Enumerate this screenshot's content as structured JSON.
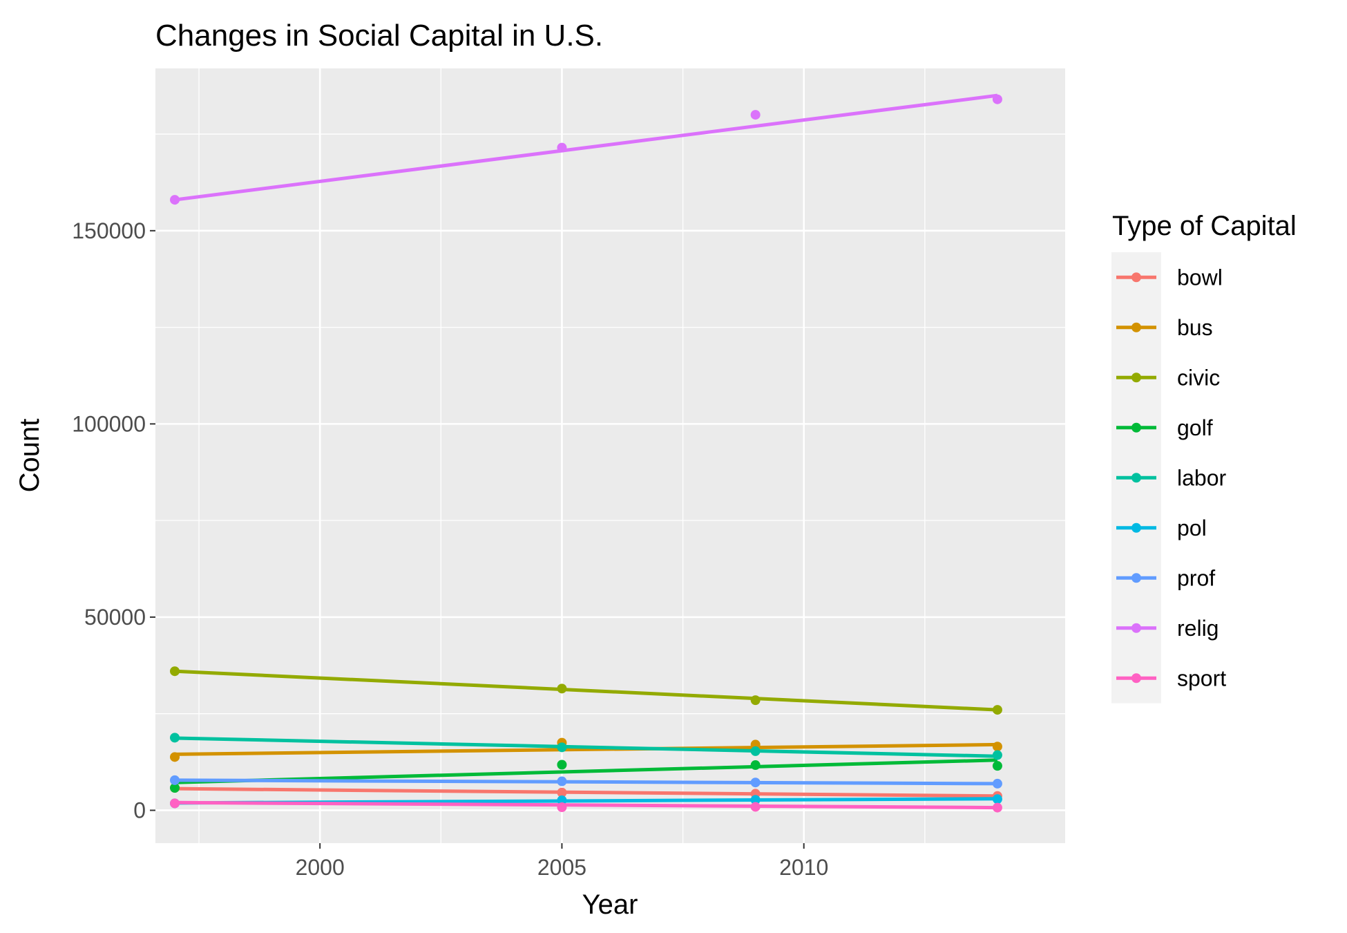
{
  "chart_data": {
    "type": "line",
    "title": "Changes in Social Capital in U.S.",
    "xlabel": "Year",
    "ylabel": "Count",
    "xlim": [
      1996.6,
      2015.4
    ],
    "ylim": [
      -8500,
      192000
    ],
    "x_ticks": [
      2000,
      2005,
      2010
    ],
    "y_ticks": [
      0,
      50000,
      100000,
      150000
    ],
    "x_tick_labels": [
      "2000",
      "2005",
      "2010"
    ],
    "y_tick_labels": [
      "0",
      "50000",
      "100000",
      "150000"
    ],
    "grid": true,
    "legend": {
      "title": "Type of Capital",
      "position": "right"
    },
    "series": [
      {
        "name": "bowl",
        "color": "#F8766D",
        "points": [
          [
            1997,
            5800
          ],
          [
            2005,
            4600
          ],
          [
            2009,
            4300
          ],
          [
            2014,
            3700
          ]
        ],
        "trend": [
          [
            1997,
            5600
          ],
          [
            2014,
            3700
          ]
        ]
      },
      {
        "name": "bus",
        "color": "#D39200",
        "points": [
          [
            1997,
            13800
          ],
          [
            2005,
            17500
          ],
          [
            2009,
            17000
          ],
          [
            2014,
            16500
          ]
        ],
        "trend": [
          [
            1997,
            14500
          ],
          [
            2014,
            17000
          ]
        ]
      },
      {
        "name": "civic",
        "color": "#93AA00",
        "points": [
          [
            1997,
            36000
          ],
          [
            2005,
            31500
          ],
          [
            2009,
            28500
          ],
          [
            2014,
            26000
          ]
        ],
        "trend": [
          [
            1997,
            36000
          ],
          [
            2014,
            26000
          ]
        ]
      },
      {
        "name": "golf",
        "color": "#00BA38",
        "points": [
          [
            1997,
            5800
          ],
          [
            2005,
            11800
          ],
          [
            2009,
            11700
          ],
          [
            2014,
            11500
          ]
        ],
        "trend": [
          [
            1997,
            7200
          ],
          [
            2014,
            13000
          ]
        ]
      },
      {
        "name": "labor",
        "color": "#00C19F",
        "points": [
          [
            1997,
            18800
          ],
          [
            2005,
            16300
          ],
          [
            2009,
            15300
          ],
          [
            2014,
            14300
          ]
        ],
        "trend": [
          [
            1997,
            18700
          ],
          [
            2014,
            14000
          ]
        ]
      },
      {
        "name": "pol",
        "color": "#00B9E3",
        "points": [
          [
            1997,
            1800
          ],
          [
            2005,
            2600
          ],
          [
            2009,
            2700
          ],
          [
            2014,
            2900
          ]
        ],
        "trend": [
          [
            1997,
            1900
          ],
          [
            2014,
            3000
          ]
        ]
      },
      {
        "name": "prof",
        "color": "#619CFF",
        "points": [
          [
            1997,
            7800
          ],
          [
            2005,
            7500
          ],
          [
            2009,
            7200
          ],
          [
            2014,
            6900
          ]
        ],
        "trend": [
          [
            1997,
            7800
          ],
          [
            2014,
            6900
          ]
        ]
      },
      {
        "name": "relig",
        "color": "#DB72FB",
        "points": [
          [
            1997,
            158000
          ],
          [
            2005,
            171500
          ],
          [
            2009,
            180000
          ],
          [
            2014,
            184000
          ]
        ],
        "trend": [
          [
            1997,
            158000
          ],
          [
            2014,
            185000
          ]
        ]
      },
      {
        "name": "sport",
        "color": "#FF61C3",
        "points": [
          [
            1997,
            1800
          ],
          [
            2005,
            800
          ],
          [
            2009,
            900
          ],
          [
            2014,
            700
          ]
        ],
        "trend": [
          [
            1997,
            2000
          ],
          [
            2014,
            700
          ]
        ]
      }
    ]
  }
}
